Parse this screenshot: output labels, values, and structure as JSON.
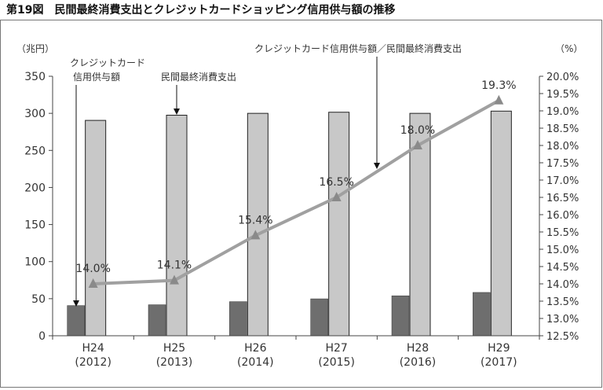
{
  "figure_title": "第19図　民間最終消費支出とクレジットカードショッピング信用供与額の推移",
  "chart_data": {
    "type": "bar",
    "categories": [
      "H24\n(2012)",
      "H25\n(2013)",
      "H26\n(2014)",
      "H27\n(2015)",
      "H28\n(2016)",
      "H29\n(2017)"
    ],
    "category_labels": [
      {
        "line1": "H24",
        "line2": "(2012)"
      },
      {
        "line1": "H25",
        "line2": "(2013)"
      },
      {
        "line1": "H26",
        "line2": "(2014)"
      },
      {
        "line1": "H27",
        "line2": "(2015)"
      },
      {
        "line1": "H28",
        "line2": "(2016)"
      },
      {
        "line1": "H29",
        "line2": "(2017)"
      }
    ],
    "series": [
      {
        "name": "クレジットカード信用供与額",
        "type": "bar",
        "axis": "left",
        "color": "#6e6e6e",
        "values": [
          40.7,
          41.8,
          46.0,
          49.8,
          53.9,
          58.4
        ]
      },
      {
        "name": "民間最終消費支出",
        "type": "bar",
        "axis": "left",
        "color": "#c8c8c8",
        "values": [
          290.5,
          297.5,
          300.0,
          301.5,
          300.0,
          303.0
        ]
      },
      {
        "name": "クレジットカード信用供与額／民間最終消費支出",
        "type": "line",
        "axis": "right",
        "color": "#a0a0a0",
        "values": [
          14.0,
          14.1,
          15.4,
          16.5,
          18.0,
          19.3
        ],
        "labels": [
          "14.0%",
          "14.1%",
          "15.4%",
          "16.5%",
          "18.0%",
          "19.3%"
        ]
      }
    ],
    "y_left": {
      "unit": "（兆円）",
      "ylim": [
        0,
        350
      ],
      "ticks": [
        0,
        50,
        100,
        150,
        200,
        250,
        300,
        350
      ]
    },
    "y_right": {
      "unit": "（%）",
      "ylim": [
        12.5,
        20.0
      ],
      "ticks": [
        "12.5%",
        "13.0%",
        "13.5%",
        "14.0%",
        "14.5%",
        "15.0%",
        "15.5%",
        "16.0%",
        "16.5%",
        "17.0%",
        "17.5%",
        "18.0%",
        "18.5%",
        "19.0%",
        "19.5%",
        "20.0%"
      ]
    },
    "annotations": {
      "credit_bar": {
        "line1": "クレジットカード",
        "line2": "信用供与額"
      },
      "consumption_bar": "民間最終消費支出",
      "ratio_line": "クレジットカード信用供与額／民間最終消費支出"
    },
    "grid": false,
    "legend": "none"
  }
}
